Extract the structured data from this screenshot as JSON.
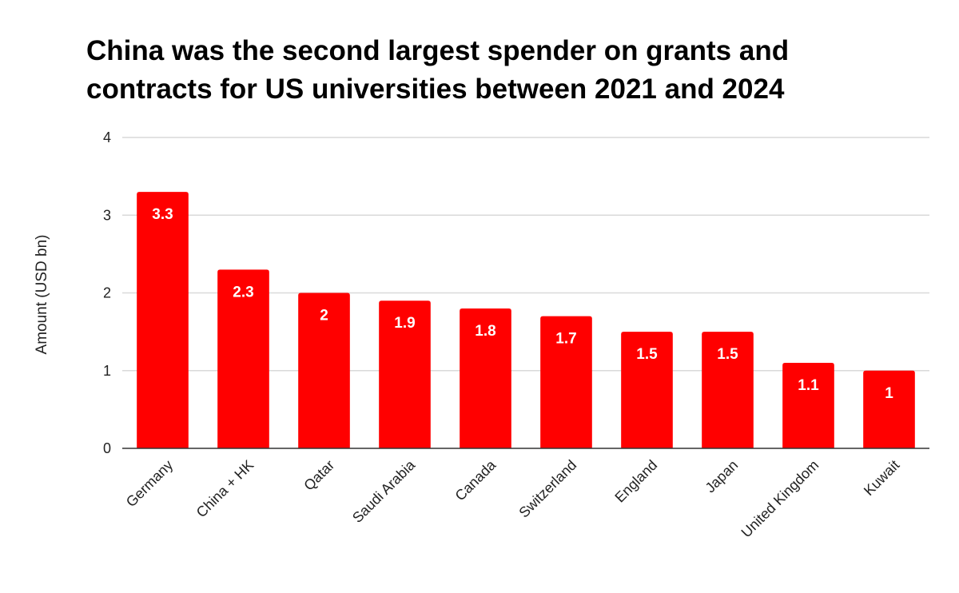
{
  "chart_data": {
    "type": "bar",
    "title_lines": [
      "China was the second largest spender on grants and",
      "contracts for US universities between 2021 and 2024"
    ],
    "xlabel": "",
    "ylabel": "Amount (USD bn)",
    "ylim": [
      0,
      4
    ],
    "yticks": [
      0,
      1,
      2,
      3,
      4
    ],
    "grid": true,
    "legend": "none",
    "categories": [
      "Germany",
      "China + HK",
      "Qatar",
      "Saudi Arabia",
      "Canada",
      "Switzerland",
      "England",
      "Japan",
      "United Kingdom",
      "Kuwait"
    ],
    "values": [
      3.3,
      2.3,
      2,
      1.9,
      1.8,
      1.7,
      1.5,
      1.5,
      1.1,
      1
    ],
    "data_labels": [
      "3.3",
      "2.3",
      "2",
      "1.9",
      "1.8",
      "1.7",
      "1.5",
      "1.5",
      "1.1",
      "1"
    ],
    "colors": {
      "bar": "#ff0000",
      "grid": "#d9d9d9",
      "axis": "#333333",
      "data_label": "#ffffff"
    }
  }
}
